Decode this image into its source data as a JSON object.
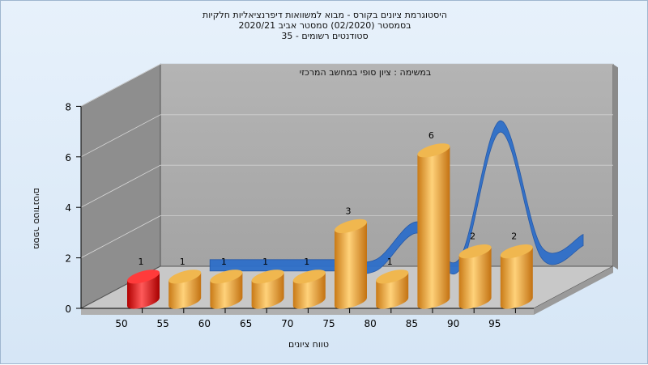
{
  "chart_data": {
    "type": "bar",
    "title_lines": [
      "היסטוגרמת ציונים בקורס - מבוא למשוואות דיפרנציאליות חלקיות",
      "בסמסטר  (02/2020)  סמסטר אביב 2020/21",
      "סטודנטים רשומים - 35"
    ],
    "annotation": "במשימה : ציון סופי במחשב המרכזי",
    "xlabel": "טווח ציונים",
    "ylabel": "מספר סטודנטים",
    "x_ticks": [
      "50",
      "55",
      "60",
      "65",
      "70",
      "75",
      "80",
      "85",
      "90",
      "95"
    ],
    "y_ticks": [
      "0",
      "2",
      "4",
      "6",
      "8"
    ],
    "ylim": [
      0,
      8
    ],
    "bars": [
      {
        "value": 1,
        "label": "1",
        "color": "red"
      },
      {
        "value": 1,
        "label": "1",
        "color": "orange"
      },
      {
        "value": 1,
        "label": "1",
        "color": "orange"
      },
      {
        "value": 1,
        "label": "1",
        "color": "orange"
      },
      {
        "value": 1,
        "label": "1",
        "color": "orange"
      },
      {
        "value": 3,
        "label": "3",
        "color": "orange"
      },
      {
        "value": 1,
        "label": "1",
        "color": "orange"
      },
      {
        "value": 6,
        "label": "6",
        "color": "orange"
      },
      {
        "value": 2,
        "label": "2",
        "color": "orange"
      },
      {
        "value": 2,
        "label": "2",
        "color": "orange"
      }
    ],
    "trend_line": [
      0,
      1,
      1,
      1,
      1,
      1,
      2.5,
      1,
      6.5,
      1.5,
      2
    ],
    "colors": {
      "bar": "#e8a23a",
      "bar_highlight": "#e01010",
      "trend": "#2e6fc9",
      "wall": "#a8a8a8",
      "side_wall": "#8e8e8e",
      "floor": "#c8c8c8"
    },
    "grid": true
  }
}
